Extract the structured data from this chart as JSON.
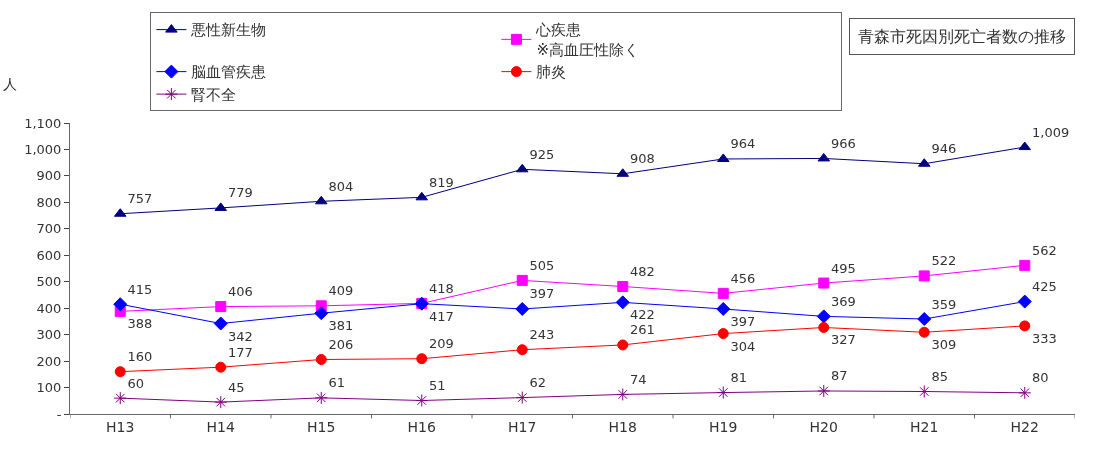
{
  "chart_data": {
    "type": "line",
    "title": "青森市死因別死亡者数の推移",
    "ylabel": "人",
    "categories": [
      "H13",
      "H14",
      "H15",
      "H16",
      "H17",
      "H18",
      "H19",
      "H20",
      "H21",
      "H22"
    ],
    "series": [
      {
        "name": "悪性新生物",
        "color": "#000080",
        "marker": "triangle",
        "values": [
          757,
          779,
          804,
          819,
          925,
          908,
          964,
          966,
          946,
          1009
        ],
        "value_labels": [
          "757",
          "779",
          "804",
          "819",
          "925",
          "908",
          "964",
          "966",
          "946",
          "1,009"
        ]
      },
      {
        "name": "心疾患\n※高血圧性除く",
        "color": "#ff00ff",
        "marker": "square",
        "values": [
          388,
          406,
          409,
          418,
          505,
          482,
          456,
          495,
          522,
          562
        ]
      },
      {
        "name": "脳血管疾患",
        "color": "#0000ff",
        "marker": "diamond",
        "values": [
          415,
          342,
          381,
          417,
          397,
          422,
          397,
          369,
          359,
          425
        ]
      },
      {
        "name": "肺炎",
        "color": "#ff0000",
        "marker": "circle",
        "values": [
          160,
          177,
          206,
          209,
          243,
          261,
          304,
          327,
          309,
          333
        ]
      },
      {
        "name": "腎不全",
        "color": "#800080",
        "marker": "cross",
        "values": [
          60,
          45,
          61,
          51,
          62,
          74,
          81,
          87,
          85,
          80
        ]
      }
    ],
    "ylim": [
      0,
      1100
    ],
    "yticks": [
      {
        "value": 0,
        "label": "-"
      },
      100,
      200,
      300,
      400,
      500,
      600,
      700,
      800,
      900,
      {
        "value": 1000,
        "label": "1,000"
      },
      {
        "value": 1100,
        "label": "1,100"
      }
    ],
    "data_labels": true,
    "legend": "top left",
    "line_style": "solid"
  }
}
